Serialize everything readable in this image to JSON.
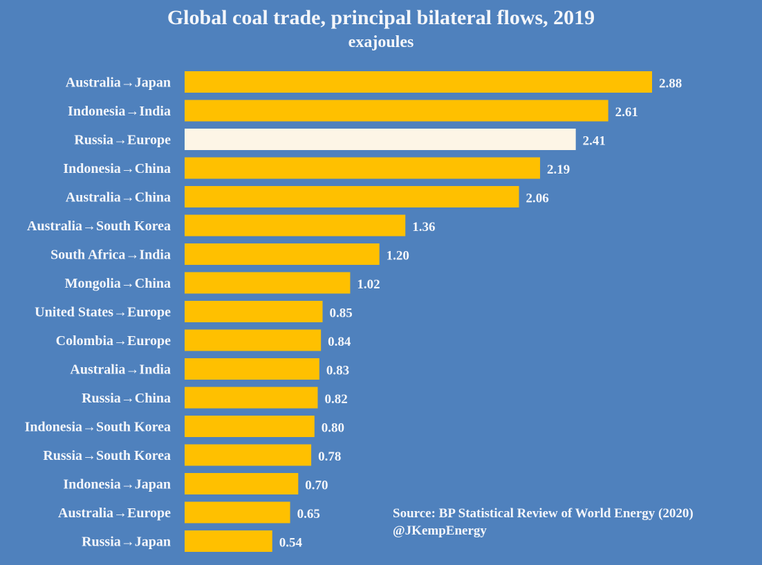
{
  "chart_data": {
    "type": "bar",
    "orientation": "horizontal",
    "title": "Global coal trade, principal bilateral flows, 2019",
    "subtitle": "exajoules",
    "xlabel": "",
    "ylabel": "",
    "xlim": [
      0,
      2.88
    ],
    "grid": false,
    "categories": [
      "Australia→Japan",
      "Indonesia→India",
      "Russia→Europe",
      "Indonesia→China",
      "Australia→China",
      "Australia→South Korea",
      "South Africa→India",
      "Mongolia→China",
      "United States→Europe",
      "Colombia→Europe",
      "Australia→India",
      "Russia→China",
      "Indonesia→South Korea",
      "Russia→South Korea",
      "Indonesia→Japan",
      "Australia→Europe",
      "Russia→Japan"
    ],
    "values": [
      2.88,
      2.61,
      2.41,
      2.19,
      2.06,
      1.36,
      1.2,
      1.02,
      0.85,
      0.84,
      0.83,
      0.82,
      0.8,
      0.78,
      0.7,
      0.65,
      0.54
    ],
    "value_labels": [
      "2.88",
      "2.61",
      "2.41",
      "2.19",
      "2.06",
      "1.36",
      "1.20",
      "1.02",
      "0.85",
      "0.84",
      "0.83",
      "0.82",
      "0.80",
      "0.78",
      "0.70",
      "0.65",
      "0.54"
    ],
    "highlighted_category": "Russia→Europe",
    "colors": {
      "background": "#4f81bd",
      "bar": "#ffc000",
      "highlight_bar": "#fdf5e6",
      "text": "#f4f6fa"
    },
    "annotations": [
      "Source: BP Statistical Review of World Energy (2020)",
      "@JKempEnergy"
    ]
  }
}
